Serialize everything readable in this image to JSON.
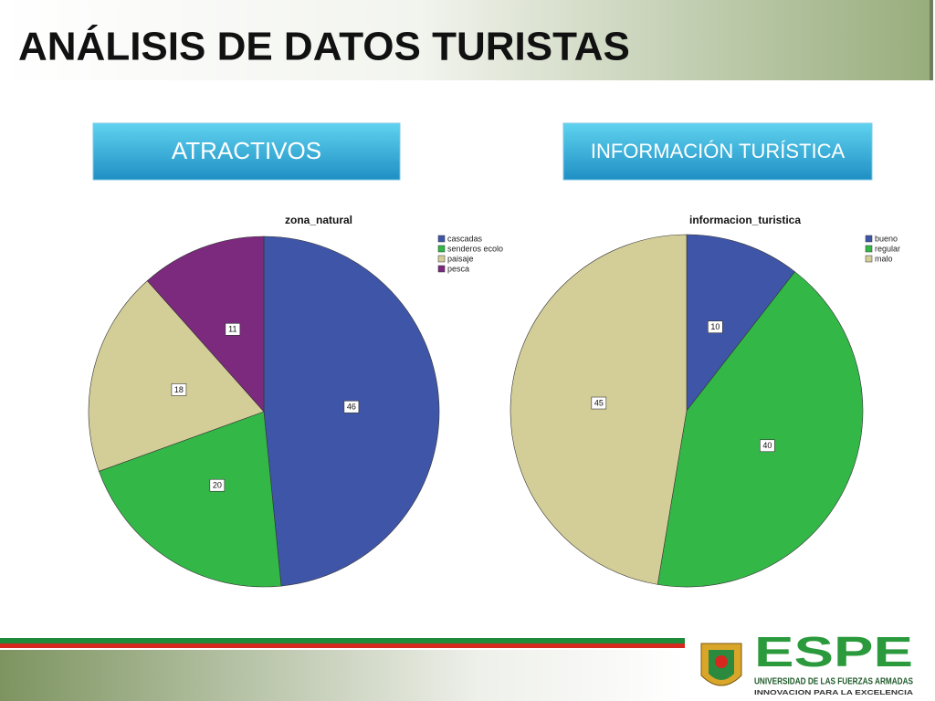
{
  "header": {
    "title": "ANÁLISIS DE DATOS TURISTAS"
  },
  "sections": [
    "ATRACTIVOS",
    "INFORMACIÓN TURÍSTICA"
  ],
  "chart_data": [
    {
      "type": "pie",
      "title": "zona_natural",
      "categories": [
        "cascadas",
        "senderos ecolo",
        "paisaje",
        "pesca"
      ],
      "values": [
        46,
        20,
        18,
        11
      ],
      "colors": [
        "#3f56a8",
        "#33b848",
        "#d3ce98",
        "#7b2a7d"
      ]
    },
    {
      "type": "pie",
      "title": "informacion_turistica",
      "categories": [
        "bueno",
        "regular",
        "malo"
      ],
      "values": [
        10,
        40,
        45
      ],
      "colors": [
        "#3f56a8",
        "#33b848",
        "#d3ce98"
      ]
    }
  ],
  "footer": {
    "logo": "ESPE",
    "university": "UNIVERSIDAD DE LAS FUERZAS ARMADAS",
    "motto": "INNOVACION PARA LA EXCELENCIA"
  }
}
